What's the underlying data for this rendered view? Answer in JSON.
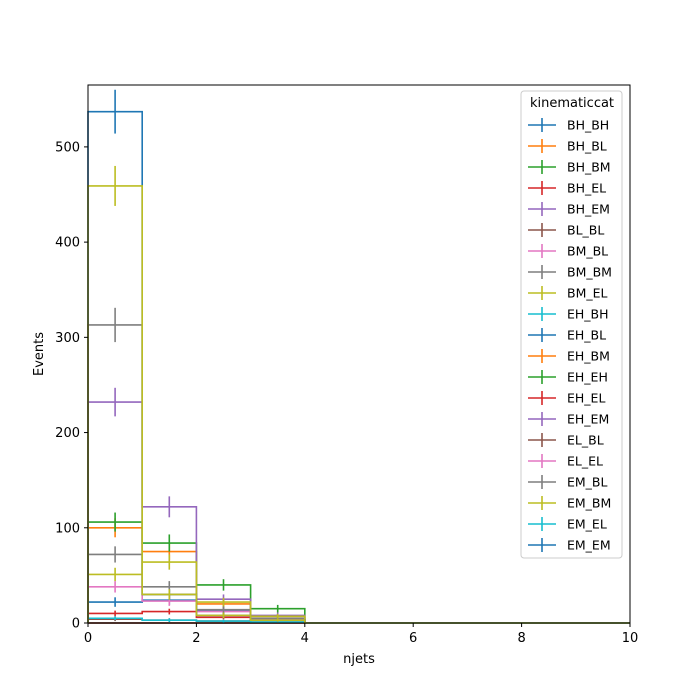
{
  "chart_data": {
    "type": "histogram",
    "xlabel": "njets",
    "ylabel": "Events",
    "xlim": [
      0,
      10
    ],
    "ylim": [
      0,
      565
    ],
    "x_ticks": [
      "0",
      "2",
      "4",
      "6",
      "8",
      "10"
    ],
    "y_ticks": [
      "0",
      "100",
      "200",
      "300",
      "400",
      "500"
    ],
    "bin_edges": [
      0,
      1,
      2,
      3,
      4,
      5,
      6,
      7,
      8,
      9,
      10
    ],
    "legend_title": "kinematiccat",
    "legend_position": "upper right",
    "grid": false,
    "series": [
      {
        "name": "BH_BH",
        "color": "#1f77b4",
        "values": [
          0,
          0,
          0,
          0,
          0,
          0,
          0,
          0,
          0,
          0
        ],
        "errors": [
          0,
          0,
          0,
          0,
          0,
          0,
          0,
          0,
          0,
          0
        ]
      },
      {
        "name": "BH_BL",
        "color": "#ff7f0e",
        "values": [
          0,
          0,
          0,
          0,
          0,
          0,
          0,
          0,
          0,
          0
        ],
        "errors": [
          0,
          0,
          0,
          0,
          0,
          0,
          0,
          0,
          0,
          0
        ]
      },
      {
        "name": "BH_BM",
        "color": "#2ca02c",
        "values": [
          0,
          0,
          0,
          0,
          0,
          0,
          0,
          0,
          0,
          0
        ],
        "errors": [
          0,
          0,
          0,
          0,
          0,
          0,
          0,
          0,
          0,
          0
        ]
      },
      {
        "name": "BH_EL",
        "color": "#d62728",
        "values": [
          10,
          12,
          6,
          3,
          0,
          0,
          0,
          0,
          0,
          0
        ],
        "errors": [
          3,
          3,
          2,
          1.5,
          0,
          0,
          0,
          0,
          0,
          0
        ]
      },
      {
        "name": "BH_EM",
        "color": "#9467bd",
        "values": [
          0,
          0,
          0,
          0,
          0,
          0,
          0,
          0,
          0,
          0
        ],
        "errors": [
          0,
          0,
          0,
          0,
          0,
          0,
          0,
          0,
          0,
          0
        ]
      },
      {
        "name": "BL_BL",
        "color": "#8c564b",
        "values": [
          4,
          3,
          2,
          1,
          0,
          0,
          0,
          0,
          0,
          0
        ],
        "errors": [
          2,
          2,
          1.5,
          1,
          0,
          0,
          0,
          0,
          0,
          0
        ]
      },
      {
        "name": "BM_BL",
        "color": "#e377c2",
        "values": [
          0,
          0,
          0,
          0,
          0,
          0,
          0,
          0,
          0,
          0
        ],
        "errors": [
          0,
          0,
          0,
          0,
          0,
          0,
          0,
          0,
          0,
          0
        ]
      },
      {
        "name": "BM_BM",
        "color": "#7f7f7f",
        "values": [
          0,
          0,
          0,
          0,
          0,
          0,
          0,
          0,
          0,
          0
        ],
        "errors": [
          0,
          0,
          0,
          0,
          0,
          0,
          0,
          0,
          0,
          0
        ]
      },
      {
        "name": "BM_EL",
        "color": "#bcbd22",
        "values": [
          0,
          0,
          0,
          0,
          0,
          0,
          0,
          0,
          0,
          0
        ],
        "errors": [
          0,
          0,
          0,
          0,
          0,
          0,
          0,
          0,
          0,
          0
        ]
      },
      {
        "name": "EH_BH",
        "color": "#17becf",
        "values": [
          0,
          0,
          0,
          0,
          0,
          0,
          0,
          0,
          0,
          0
        ],
        "errors": [
          0,
          0,
          0,
          0,
          0,
          0,
          0,
          0,
          0,
          0
        ]
      },
      {
        "name": "EH_BL",
        "color": "#1f77b4",
        "values": [
          22,
          24,
          13,
          5,
          0,
          0,
          0,
          0,
          0,
          0
        ],
        "errors": [
          5,
          5,
          3.5,
          2,
          0,
          0,
          0,
          0,
          0,
          0
        ]
      },
      {
        "name": "EH_BM",
        "color": "#ff7f0e",
        "values": [
          100,
          75,
          20,
          7,
          0,
          0,
          0,
          0,
          0,
          0
        ],
        "errors": [
          10,
          9,
          4.5,
          2.5,
          0,
          0,
          0,
          0,
          0,
          0
        ]
      },
      {
        "name": "EH_EH",
        "color": "#2ca02c",
        "values": [
          106,
          84,
          40,
          15,
          0,
          0,
          0,
          0,
          0,
          0
        ],
        "errors": [
          10,
          9,
          6,
          4,
          0,
          0,
          0,
          0,
          0,
          0
        ]
      },
      {
        "name": "EH_EL",
        "color": "#d62728",
        "values": [
          0,
          0,
          0,
          0,
          0,
          0,
          0,
          0,
          0,
          0
        ],
        "errors": [
          0,
          0,
          0,
          0,
          0,
          0,
          0,
          0,
          0,
          0
        ]
      },
      {
        "name": "EH_EM",
        "color": "#9467bd",
        "values": [
          232,
          122,
          25,
          8,
          0,
          0,
          0,
          0,
          0,
          0
        ],
        "errors": [
          15,
          11,
          5,
          3,
          0,
          0,
          0,
          0,
          0,
          0
        ]
      },
      {
        "name": "EL_BL",
        "color": "#8c564b",
        "values": [
          0,
          0,
          0,
          0,
          0,
          0,
          0,
          0,
          0,
          0
        ],
        "errors": [
          0,
          0,
          0,
          0,
          0,
          0,
          0,
          0,
          0,
          0
        ]
      },
      {
        "name": "EL_EL",
        "color": "#e377c2",
        "values": [
          38,
          23,
          12,
          4,
          0,
          0,
          0,
          0,
          0,
          0
        ],
        "errors": [
          6,
          5,
          3.5,
          2,
          0,
          0,
          0,
          0,
          0,
          0
        ]
      },
      {
        "name": "EM_BL",
        "color": "#7f7f7f",
        "values": [
          72,
          38,
          14,
          5,
          0,
          0,
          0,
          0,
          0,
          0
        ],
        "errors": [
          8.5,
          6,
          4,
          2,
          0,
          0,
          0,
          0,
          0,
          0
        ]
      },
      {
        "name": "EM_BM",
        "color": "#bcbd22",
        "values": [
          51,
          64,
          22,
          7,
          0,
          0,
          0,
          0,
          0,
          0
        ],
        "errors": [
          7,
          8,
          4.5,
          2.5,
          0,
          0,
          0,
          0,
          0,
          0
        ]
      },
      {
        "name": "EM_EL",
        "color": "#17becf",
        "values": [
          5,
          3,
          2,
          1,
          0,
          0,
          0,
          0,
          0,
          0
        ],
        "errors": [
          2,
          2,
          1.5,
          1,
          0,
          0,
          0,
          0,
          0,
          0
        ]
      },
      {
        "name": "EM_EM",
        "color": "#1f77b4",
        "values": [
          537,
          30,
          8,
          3,
          0,
          0,
          0,
          0,
          0,
          0
        ],
        "errors": [
          23,
          5.5,
          3,
          1.5,
          0,
          0,
          0,
          0,
          0,
          0
        ]
      },
      {
        "name": "",
        "color": "#7f7f7f",
        "values": [
          313,
          30,
          8,
          3,
          0,
          0,
          0,
          0,
          0,
          0
        ],
        "errors": [
          18,
          5.5,
          3,
          1.5,
          0,
          0,
          0,
          0,
          0,
          0
        ]
      },
      {
        "name": "",
        "color": "#bcbd22",
        "values": [
          459,
          30,
          8,
          3,
          0,
          0,
          0,
          0,
          0,
          0
        ],
        "errors": [
          21,
          5.5,
          3,
          1.5,
          0,
          0,
          0,
          0,
          0,
          0
        ]
      }
    ]
  }
}
